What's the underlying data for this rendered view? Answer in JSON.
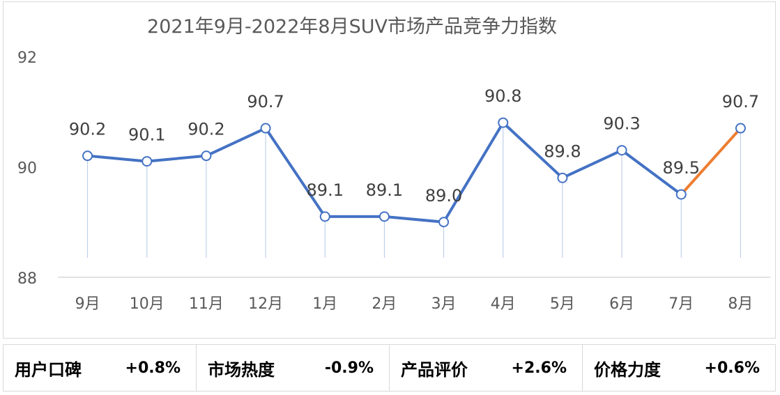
{
  "chart_data": {
    "type": "line",
    "title": "2021年9月-2022年8月SUV市场产品竞争力指数",
    "categories": [
      "9月",
      "10月",
      "11月",
      "12月",
      "1月",
      "2月",
      "3月",
      "4月",
      "5月",
      "6月",
      "7月",
      "8月"
    ],
    "values": [
      90.2,
      90.1,
      90.2,
      90.7,
      89.1,
      89.1,
      89.0,
      90.8,
      89.8,
      90.3,
      89.5,
      90.7
    ],
    "data_labels": [
      "90.2",
      "90.1",
      "90.2",
      "90.7",
      "89.1",
      "89.1",
      "89.0",
      "90.8",
      "89.8",
      "90.3",
      "89.5",
      "90.7"
    ],
    "ylim": [
      88,
      92
    ],
    "yticks": [
      "88",
      "90",
      "92"
    ],
    "grid": false,
    "colors": {
      "line": "#4472c4",
      "highlight": "#ed7d31",
      "marker_fill": "#ffffff",
      "drop_line": "#b4c7e7"
    },
    "highlight_last_segment": true
  },
  "stats": [
    {
      "label": "用户口碑",
      "value": "+0.8%"
    },
    {
      "label": "市场热度",
      "value": "-0.9%"
    },
    {
      "label": "产品评价",
      "value": "+2.6%"
    },
    {
      "label": "价格力度",
      "value": "+0.6%"
    }
  ]
}
